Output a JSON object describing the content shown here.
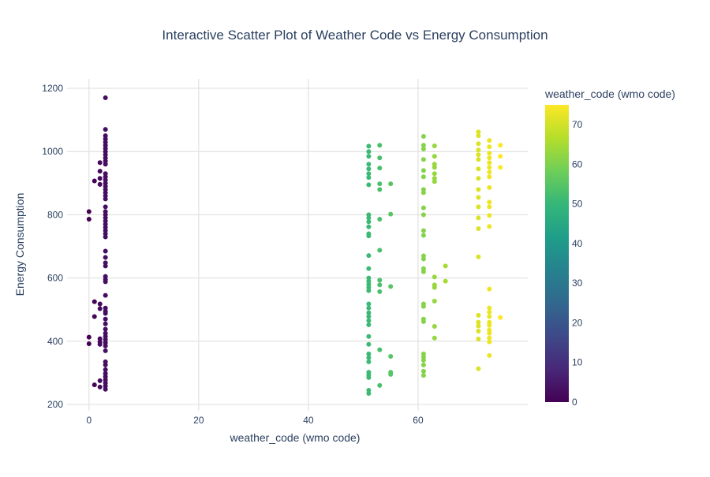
{
  "chart_data": {
    "type": "scatter",
    "title": "Interactive Scatter Plot of Weather Code vs Energy Consumption",
    "xlabel": "weather_code (wmo code)",
    "ylabel": "Energy Consumption",
    "xlim": [
      -4,
      80
    ],
    "ylim": [
      180,
      1230
    ],
    "x_ticks": [
      0,
      20,
      40,
      60
    ],
    "y_ticks": [
      200,
      400,
      600,
      800,
      1000,
      1200
    ],
    "grid": true,
    "colorbar": {
      "title": "weather_code (wmo code)",
      "range": [
        0,
        75
      ],
      "ticks": [
        0,
        10,
        20,
        30,
        40,
        50,
        60,
        70
      ],
      "colorscale": [
        "#440154",
        "#482878",
        "#3e4989",
        "#31688e",
        "#26828e",
        "#1f9e89",
        "#35b779",
        "#6ece58",
        "#b5de2b",
        "#fde725"
      ]
    },
    "points": [
      {
        "x": 0,
        "y": 810
      },
      {
        "x": 0,
        "y": 786
      },
      {
        "x": 0,
        "y": 413
      },
      {
        "x": 0,
        "y": 392
      },
      {
        "x": 1,
        "y": 907
      },
      {
        "x": 1,
        "y": 525
      },
      {
        "x": 1,
        "y": 478
      },
      {
        "x": 1,
        "y": 262
      },
      {
        "x": 2,
        "y": 965
      },
      {
        "x": 2,
        "y": 938
      },
      {
        "x": 2,
        "y": 915
      },
      {
        "x": 2,
        "y": 896
      },
      {
        "x": 2,
        "y": 518
      },
      {
        "x": 2,
        "y": 503
      },
      {
        "x": 2,
        "y": 408
      },
      {
        "x": 2,
        "y": 398
      },
      {
        "x": 2,
        "y": 390
      },
      {
        "x": 2,
        "y": 275
      },
      {
        "x": 2,
        "y": 255
      },
      {
        "x": 3,
        "y": 1170
      },
      {
        "x": 3,
        "y": 1070
      },
      {
        "x": 3,
        "y": 1050
      },
      {
        "x": 3,
        "y": 1040
      },
      {
        "x": 3,
        "y": 1030
      },
      {
        "x": 3,
        "y": 1020
      },
      {
        "x": 3,
        "y": 1010
      },
      {
        "x": 3,
        "y": 1000
      },
      {
        "x": 3,
        "y": 990
      },
      {
        "x": 3,
        "y": 980
      },
      {
        "x": 3,
        "y": 970
      },
      {
        "x": 3,
        "y": 960
      },
      {
        "x": 3,
        "y": 930
      },
      {
        "x": 3,
        "y": 920
      },
      {
        "x": 3,
        "y": 910
      },
      {
        "x": 3,
        "y": 900
      },
      {
        "x": 3,
        "y": 890
      },
      {
        "x": 3,
        "y": 880
      },
      {
        "x": 3,
        "y": 870
      },
      {
        "x": 3,
        "y": 860
      },
      {
        "x": 3,
        "y": 850
      },
      {
        "x": 3,
        "y": 825
      },
      {
        "x": 3,
        "y": 810
      },
      {
        "x": 3,
        "y": 800
      },
      {
        "x": 3,
        "y": 790
      },
      {
        "x": 3,
        "y": 780
      },
      {
        "x": 3,
        "y": 770
      },
      {
        "x": 3,
        "y": 760
      },
      {
        "x": 3,
        "y": 750
      },
      {
        "x": 3,
        "y": 740
      },
      {
        "x": 3,
        "y": 730
      },
      {
        "x": 3,
        "y": 685
      },
      {
        "x": 3,
        "y": 665
      },
      {
        "x": 3,
        "y": 648
      },
      {
        "x": 3,
        "y": 638
      },
      {
        "x": 3,
        "y": 605
      },
      {
        "x": 3,
        "y": 595
      },
      {
        "x": 3,
        "y": 588
      },
      {
        "x": 3,
        "y": 545
      },
      {
        "x": 3,
        "y": 505
      },
      {
        "x": 3,
        "y": 495
      },
      {
        "x": 3,
        "y": 488
      },
      {
        "x": 3,
        "y": 470
      },
      {
        "x": 3,
        "y": 455
      },
      {
        "x": 3,
        "y": 438
      },
      {
        "x": 3,
        "y": 425
      },
      {
        "x": 3,
        "y": 415
      },
      {
        "x": 3,
        "y": 405
      },
      {
        "x": 3,
        "y": 395
      },
      {
        "x": 3,
        "y": 385
      },
      {
        "x": 3,
        "y": 370
      },
      {
        "x": 3,
        "y": 335
      },
      {
        "x": 3,
        "y": 325
      },
      {
        "x": 3,
        "y": 310
      },
      {
        "x": 3,
        "y": 298
      },
      {
        "x": 3,
        "y": 288
      },
      {
        "x": 3,
        "y": 278
      },
      {
        "x": 3,
        "y": 268
      },
      {
        "x": 3,
        "y": 258
      },
      {
        "x": 3,
        "y": 248
      },
      {
        "x": 51,
        "y": 1017
      },
      {
        "x": 51,
        "y": 1000
      },
      {
        "x": 51,
        "y": 985
      },
      {
        "x": 51,
        "y": 960
      },
      {
        "x": 51,
        "y": 945
      },
      {
        "x": 51,
        "y": 930
      },
      {
        "x": 51,
        "y": 918
      },
      {
        "x": 51,
        "y": 895
      },
      {
        "x": 51,
        "y": 800
      },
      {
        "x": 51,
        "y": 790
      },
      {
        "x": 51,
        "y": 778
      },
      {
        "x": 51,
        "y": 762
      },
      {
        "x": 51,
        "y": 740
      },
      {
        "x": 51,
        "y": 733
      },
      {
        "x": 51,
        "y": 671
      },
      {
        "x": 51,
        "y": 630
      },
      {
        "x": 51,
        "y": 600
      },
      {
        "x": 51,
        "y": 590
      },
      {
        "x": 51,
        "y": 580
      },
      {
        "x": 51,
        "y": 570
      },
      {
        "x": 51,
        "y": 560
      },
      {
        "x": 51,
        "y": 518
      },
      {
        "x": 51,
        "y": 505
      },
      {
        "x": 51,
        "y": 490
      },
      {
        "x": 51,
        "y": 478
      },
      {
        "x": 51,
        "y": 465
      },
      {
        "x": 51,
        "y": 452
      },
      {
        "x": 51,
        "y": 415
      },
      {
        "x": 51,
        "y": 390
      },
      {
        "x": 51,
        "y": 360
      },
      {
        "x": 51,
        "y": 348
      },
      {
        "x": 51,
        "y": 335
      },
      {
        "x": 51,
        "y": 302
      },
      {
        "x": 51,
        "y": 293
      },
      {
        "x": 51,
        "y": 285
      },
      {
        "x": 51,
        "y": 245
      },
      {
        "x": 51,
        "y": 235
      },
      {
        "x": 53,
        "y": 1020
      },
      {
        "x": 53,
        "y": 980
      },
      {
        "x": 53,
        "y": 948
      },
      {
        "x": 53,
        "y": 898
      },
      {
        "x": 53,
        "y": 880
      },
      {
        "x": 53,
        "y": 786
      },
      {
        "x": 53,
        "y": 688
      },
      {
        "x": 53,
        "y": 593
      },
      {
        "x": 53,
        "y": 578
      },
      {
        "x": 53,
        "y": 557
      },
      {
        "x": 53,
        "y": 373
      },
      {
        "x": 53,
        "y": 260
      },
      {
        "x": 55,
        "y": 898
      },
      {
        "x": 55,
        "y": 802
      },
      {
        "x": 55,
        "y": 573
      },
      {
        "x": 55,
        "y": 352
      },
      {
        "x": 55,
        "y": 302
      },
      {
        "x": 55,
        "y": 295
      },
      {
        "x": 61,
        "y": 1048
      },
      {
        "x": 61,
        "y": 1020
      },
      {
        "x": 61,
        "y": 1008
      },
      {
        "x": 61,
        "y": 975
      },
      {
        "x": 61,
        "y": 940
      },
      {
        "x": 61,
        "y": 920
      },
      {
        "x": 61,
        "y": 880
      },
      {
        "x": 61,
        "y": 870
      },
      {
        "x": 61,
        "y": 822
      },
      {
        "x": 61,
        "y": 800
      },
      {
        "x": 61,
        "y": 750
      },
      {
        "x": 61,
        "y": 735
      },
      {
        "x": 61,
        "y": 670
      },
      {
        "x": 61,
        "y": 660
      },
      {
        "x": 61,
        "y": 630
      },
      {
        "x": 61,
        "y": 620
      },
      {
        "x": 61,
        "y": 518
      },
      {
        "x": 61,
        "y": 510
      },
      {
        "x": 61,
        "y": 470
      },
      {
        "x": 61,
        "y": 462
      },
      {
        "x": 61,
        "y": 360
      },
      {
        "x": 61,
        "y": 350
      },
      {
        "x": 61,
        "y": 340
      },
      {
        "x": 61,
        "y": 325
      },
      {
        "x": 61,
        "y": 305
      },
      {
        "x": 61,
        "y": 292
      },
      {
        "x": 63,
        "y": 1018
      },
      {
        "x": 63,
        "y": 985
      },
      {
        "x": 63,
        "y": 960
      },
      {
        "x": 63,
        "y": 950
      },
      {
        "x": 63,
        "y": 930
      },
      {
        "x": 63,
        "y": 915
      },
      {
        "x": 63,
        "y": 905
      },
      {
        "x": 63,
        "y": 603
      },
      {
        "x": 63,
        "y": 578
      },
      {
        "x": 63,
        "y": 570
      },
      {
        "x": 63,
        "y": 527
      },
      {
        "x": 63,
        "y": 447
      },
      {
        "x": 63,
        "y": 410
      },
      {
        "x": 65,
        "y": 638
      },
      {
        "x": 65,
        "y": 590
      },
      {
        "x": 71,
        "y": 1062
      },
      {
        "x": 71,
        "y": 1050
      },
      {
        "x": 71,
        "y": 1025
      },
      {
        "x": 71,
        "y": 1005
      },
      {
        "x": 71,
        "y": 990
      },
      {
        "x": 71,
        "y": 975
      },
      {
        "x": 71,
        "y": 945
      },
      {
        "x": 71,
        "y": 915
      },
      {
        "x": 71,
        "y": 880
      },
      {
        "x": 71,
        "y": 855
      },
      {
        "x": 71,
        "y": 825
      },
      {
        "x": 71,
        "y": 790
      },
      {
        "x": 71,
        "y": 756
      },
      {
        "x": 71,
        "y": 667
      },
      {
        "x": 71,
        "y": 482
      },
      {
        "x": 71,
        "y": 460
      },
      {
        "x": 71,
        "y": 448
      },
      {
        "x": 71,
        "y": 432
      },
      {
        "x": 71,
        "y": 407
      },
      {
        "x": 71,
        "y": 313
      },
      {
        "x": 73,
        "y": 1035
      },
      {
        "x": 73,
        "y": 1015
      },
      {
        "x": 73,
        "y": 995
      },
      {
        "x": 73,
        "y": 980
      },
      {
        "x": 73,
        "y": 965
      },
      {
        "x": 73,
        "y": 950
      },
      {
        "x": 73,
        "y": 935
      },
      {
        "x": 73,
        "y": 920
      },
      {
        "x": 73,
        "y": 886
      },
      {
        "x": 73,
        "y": 840
      },
      {
        "x": 73,
        "y": 825
      },
      {
        "x": 73,
        "y": 798
      },
      {
        "x": 73,
        "y": 763
      },
      {
        "x": 73,
        "y": 565
      },
      {
        "x": 73,
        "y": 505
      },
      {
        "x": 73,
        "y": 492
      },
      {
        "x": 73,
        "y": 478
      },
      {
        "x": 73,
        "y": 460
      },
      {
        "x": 73,
        "y": 450
      },
      {
        "x": 73,
        "y": 435
      },
      {
        "x": 73,
        "y": 425
      },
      {
        "x": 73,
        "y": 410
      },
      {
        "x": 73,
        "y": 398
      },
      {
        "x": 73,
        "y": 355
      },
      {
        "x": 75,
        "y": 1020
      },
      {
        "x": 75,
        "y": 985
      },
      {
        "x": 75,
        "y": 950
      },
      {
        "x": 75,
        "y": 475
      }
    ]
  }
}
